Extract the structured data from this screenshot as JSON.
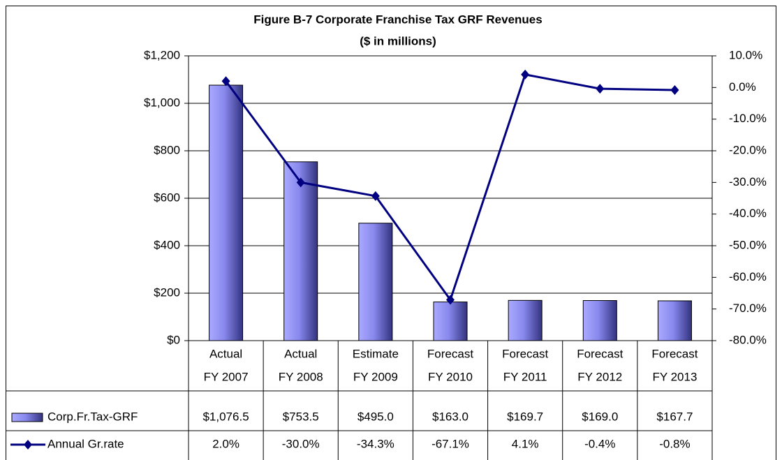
{
  "chart_data": {
    "type": "bar-line-table",
    "title": "Figure B-7 Corporate Franchise Tax GRF Revenues",
    "subtitle": "($ in millions)",
    "categories": [
      [
        "Actual",
        "FY 2007"
      ],
      [
        "Actual",
        "FY 2008"
      ],
      [
        "Estimate",
        "FY 2009"
      ],
      [
        "Forecast",
        "FY 2010"
      ],
      [
        "Forecast",
        "FY 2011"
      ],
      [
        "Forecast",
        "FY 2012"
      ],
      [
        "Forecast",
        "FY 2013"
      ]
    ],
    "series": [
      {
        "name": "Corp.Fr.Tax-GRF",
        "type": "bar",
        "color": "#6666cc",
        "axis": "y",
        "values": [
          1076.5,
          753.5,
          495.0,
          163.0,
          169.7,
          169.0,
          167.7
        ],
        "value_labels": [
          "$1,076.5",
          "$753.5",
          "$495.0",
          "$163.0",
          "$169.7",
          "$169.0",
          "$167.7"
        ]
      },
      {
        "name": "Annual Gr.rate",
        "type": "line",
        "color": "#000080",
        "axis": "y2",
        "values": [
          2.0,
          -30.0,
          -34.3,
          -67.1,
          4.1,
          -0.4,
          -0.8
        ],
        "value_labels": [
          "2.0%",
          "-30.0%",
          "-34.3%",
          "-67.1%",
          "4.1%",
          "-0.4%",
          "-0.8%"
        ]
      }
    ],
    "ylim": [
      0,
      1200
    ],
    "yticks": [
      {
        "value": 0,
        "label": "$0"
      },
      {
        "value": 200,
        "label": "$200"
      },
      {
        "value": 400,
        "label": "$400"
      },
      {
        "value": 600,
        "label": "$600"
      },
      {
        "value": 800,
        "label": "$800"
      },
      {
        "value": 1000,
        "label": "$1,000"
      },
      {
        "value": 1200,
        "label": "$1,200"
      }
    ],
    "y2lim": [
      -80,
      10
    ],
    "y2ticks": [
      {
        "value": -80,
        "label": "-80.0%"
      },
      {
        "value": -70,
        "label": "-70.0%"
      },
      {
        "value": -60,
        "label": "-60.0%"
      },
      {
        "value": -50,
        "label": "-50.0%"
      },
      {
        "value": -40,
        "label": "-40.0%"
      },
      {
        "value": -30,
        "label": "-30.0%"
      },
      {
        "value": -20,
        "label": "-20.0%"
      },
      {
        "value": -10,
        "label": "-10.0%"
      },
      {
        "value": 0,
        "label": "0.0%"
      },
      {
        "value": 10,
        "label": "10.0%"
      }
    ],
    "grid": true
  }
}
